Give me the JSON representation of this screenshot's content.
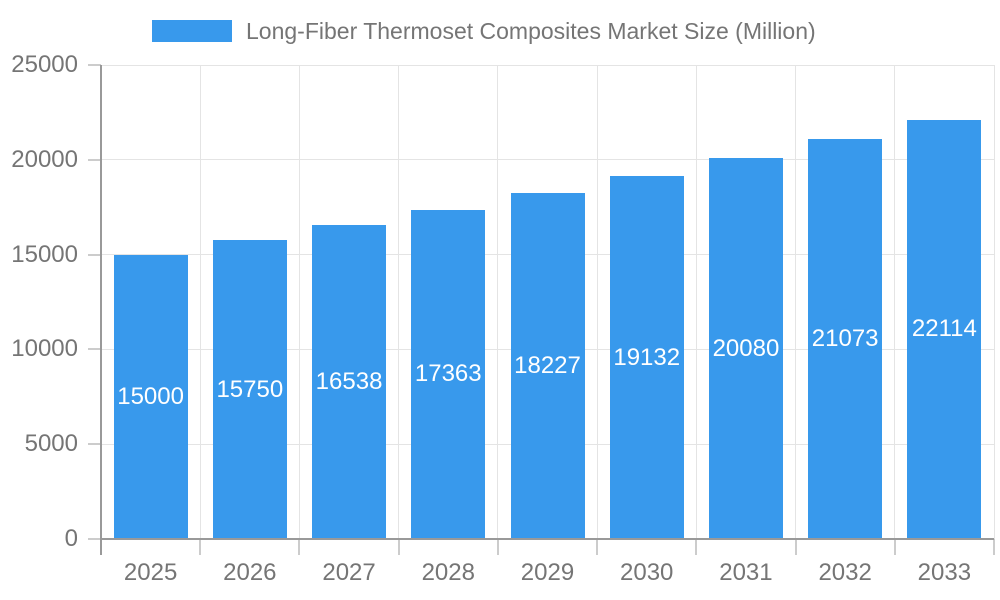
{
  "legend": {
    "label": "Long-Fiber Thermoset Composites Market Size (Million)"
  },
  "chart_data": {
    "type": "bar",
    "title": "Long-Fiber Thermoset Composites Market Size (Million)",
    "categories": [
      "2025",
      "2026",
      "2027",
      "2028",
      "2029",
      "2030",
      "2031",
      "2032",
      "2033"
    ],
    "values": [
      15000,
      15750,
      16538,
      17363,
      18227,
      19132,
      20080,
      21073,
      22114
    ],
    "series": [
      {
        "name": "Long-Fiber Thermoset Composites Market Size (Million)",
        "values": [
          15000,
          15750,
          16538,
          17363,
          18227,
          19132,
          20080,
          21073,
          22114
        ]
      }
    ],
    "xlabel": "",
    "ylabel": "",
    "ylim": [
      0,
      25000
    ],
    "y_ticks": [
      0,
      5000,
      10000,
      15000,
      20000,
      25000
    ],
    "grid": "horizontal and vertical gridlines on",
    "legend_position": "top",
    "bar_labels": "values shown in white inside bars, centered",
    "colors": {
      "bar": "#3899EC",
      "axis": "#999999",
      "grid": "#E4E4E4",
      "tick": "#CCCCCC",
      "text": "#757575",
      "bar_label": "#FFFFFF",
      "background": "#FFFFFF"
    }
  }
}
